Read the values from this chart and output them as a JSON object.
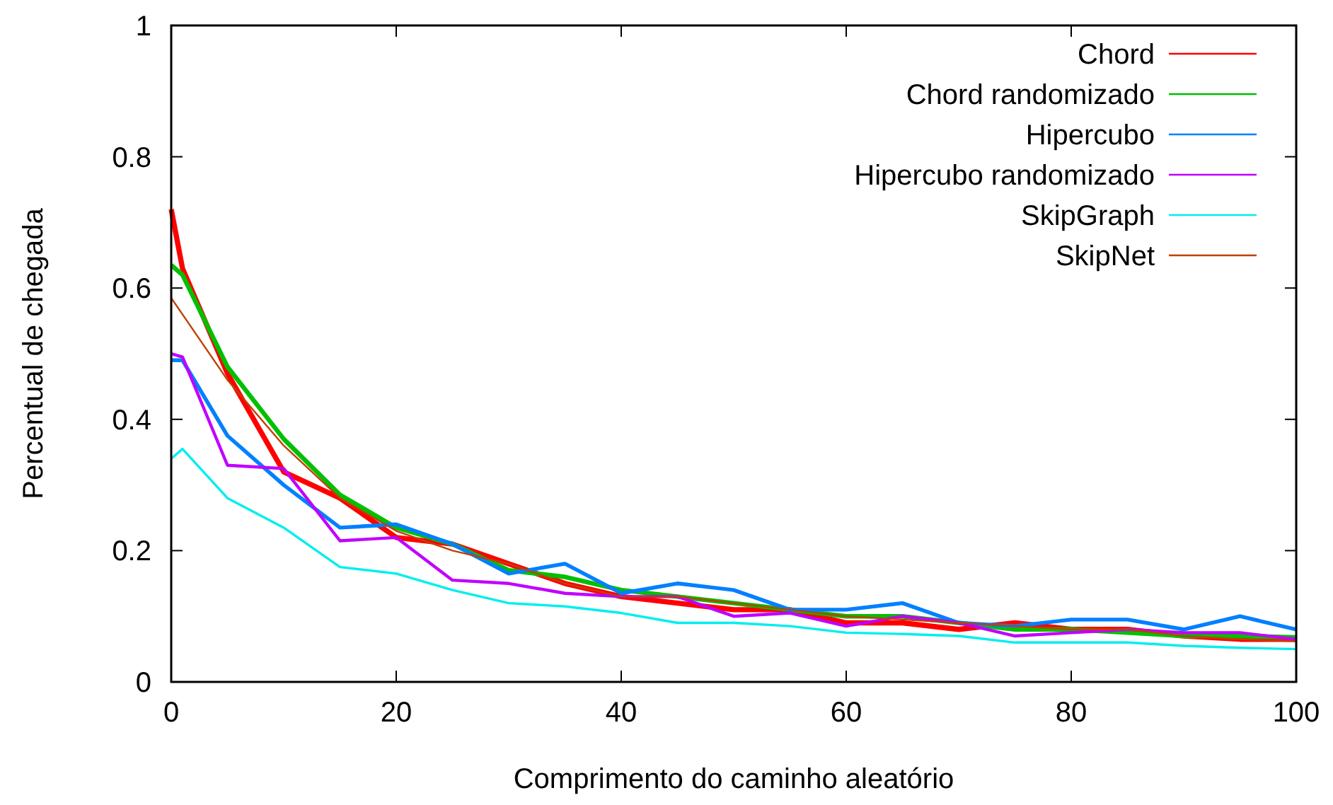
{
  "chart_data": {
    "type": "line",
    "xlabel": "Comprimento do caminho aleatório",
    "ylabel": "Percentual de chegada",
    "x": [
      0,
      1,
      5,
      10,
      15,
      20,
      25,
      30,
      35,
      40,
      45,
      50,
      55,
      60,
      65,
      70,
      75,
      80,
      85,
      90,
      95,
      100
    ],
    "xlim": [
      0,
      100
    ],
    "xticks": [
      0,
      20,
      40,
      60,
      80,
      100
    ],
    "ylim": [
      0,
      1
    ],
    "yticks": [
      0,
      0.2,
      0.4,
      0.6,
      0.8,
      1
    ],
    "grid": false,
    "legend": "top right",
    "marker": "none",
    "line_style": "solid",
    "series": [
      {
        "name": "Chord",
        "color": "#ff0000",
        "values": [
          0.72,
          0.63,
          0.47,
          0.32,
          0.28,
          0.22,
          0.21,
          0.18,
          0.15,
          0.13,
          0.12,
          0.11,
          0.11,
          0.09,
          0.09,
          0.08,
          0.09,
          0.08,
          0.08,
          0.07,
          0.065,
          0.065
        ]
      },
      {
        "name": "Chord randomizado",
        "color": "#00c000",
        "values": [
          0.635,
          0.62,
          0.48,
          0.37,
          0.285,
          0.235,
          0.21,
          0.17,
          0.16,
          0.14,
          0.13,
          0.12,
          0.11,
          0.1,
          0.1,
          0.09,
          0.08,
          0.08,
          0.075,
          0.07,
          0.07,
          0.068
        ]
      },
      {
        "name": "Hipercubo",
        "color": "#0080ff",
        "values": [
          0.49,
          0.49,
          0.375,
          0.3,
          0.235,
          0.24,
          0.21,
          0.165,
          0.18,
          0.135,
          0.15,
          0.14,
          0.11,
          0.11,
          0.12,
          0.09,
          0.085,
          0.095,
          0.095,
          0.08,
          0.1,
          0.08
        ]
      },
      {
        "name": "Hipercubo randomizado",
        "color": "#c000ff",
        "values": [
          0.5,
          0.495,
          0.33,
          0.325,
          0.215,
          0.22,
          0.155,
          0.15,
          0.135,
          0.13,
          0.13,
          0.1,
          0.105,
          0.085,
          0.1,
          0.09,
          0.07,
          0.075,
          0.08,
          0.075,
          0.075,
          0.065
        ]
      },
      {
        "name": "SkipGraph",
        "color": "#00eeee",
        "values": [
          0.34,
          0.355,
          0.28,
          0.235,
          0.175,
          0.165,
          0.14,
          0.12,
          0.115,
          0.105,
          0.09,
          0.09,
          0.085,
          0.075,
          0.073,
          0.07,
          0.06,
          0.06,
          0.06,
          0.055,
          0.052,
          0.05
        ]
      },
      {
        "name": "SkipNet",
        "color": "#c04000",
        "values": [
          0.585,
          0.56,
          0.46,
          0.36,
          0.28,
          0.23,
          0.2,
          0.18,
          0.15,
          0.13,
          0.13,
          0.12,
          0.11,
          0.1,
          0.095,
          0.09,
          0.085,
          0.08,
          0.08,
          0.07,
          0.065,
          0.062
        ]
      }
    ]
  }
}
